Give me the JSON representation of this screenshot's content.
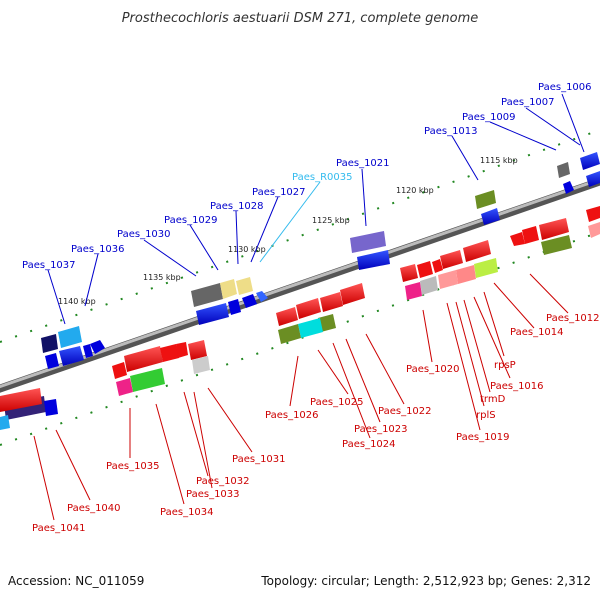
{
  "title": "Prosthecochloris aestuarii DSM 271, complete genome",
  "footer": {
    "accession": "Accession: NC_011059",
    "topology": "Topology: circular; Length: 2,512,923 bp; Genes: 2,312"
  },
  "colors": {
    "backbone": "#8a8a8a",
    "forward_label": "#0000cc",
    "reverse_label": "#cc0000",
    "rna_label": "#33bbee",
    "tick": "#228822"
  },
  "kbp_marks": [
    "1115 kbp",
    "1120 kbp",
    "1125 kbp",
    "1130 kbp",
    "1135 kbp",
    "1140 kbp"
  ],
  "forward_labels": [
    "Paes_1006",
    "Paes_1007",
    "Paes_1009",
    "Paes_1013",
    "Paes_1021",
    "Paes_1027",
    "Paes_1028",
    "Paes_1029",
    "Paes_1030",
    "Paes_1036",
    "Paes_1037"
  ],
  "rna_labels": [
    "Paes_R0035"
  ],
  "reverse_labels": [
    "Paes_1012",
    "Paes_1014",
    "rpsP",
    "Paes_1016",
    "trmD",
    "rplS",
    "Paes_1019",
    "Paes_1020",
    "Paes_1022",
    "Paes_1023",
    "Paes_1024",
    "Paes_1025",
    "Paes_1026",
    "Paes_1031",
    "Paes_1032",
    "Paes_1033",
    "Paes_1034",
    "Paes_1035",
    "Paes_1040",
    "Paes_1041"
  ]
}
